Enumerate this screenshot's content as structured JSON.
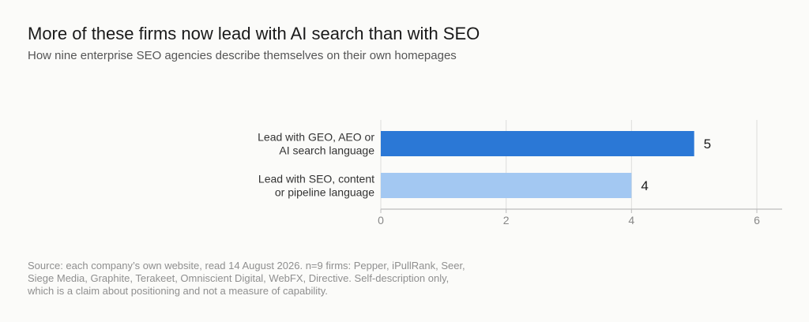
{
  "title": "More of these firms now lead with AI search than with SEO",
  "subtitle": "How nine enterprise SEO agencies describe themselves on their own homepages",
  "source": "Source: each company’s own website, read 14 August 2026. n=9 firms: Pepper, iPullRank, Seer,\nSiege Media, Graphite, Terakeet, Omniscient Digital, WebFX, Directive. Self-description only,\nwhich is a claim about positioning and not a measure of capability.",
  "colors": {
    "bar_primary": "#2b78d6",
    "bar_secondary": "#a3c8f2",
    "grid": "#dcdcdc",
    "axis": "#bdbdbd",
    "tick_text": "#888888",
    "label_text": "#333333",
    "value_text": "#1a1a1a"
  },
  "chart_data": {
    "type": "bar",
    "orientation": "horizontal",
    "categories": [
      [
        "Lead with GEO, AEO or",
        "AI search language"
      ],
      [
        "Lead with SEO, content",
        "or pipeline language"
      ]
    ],
    "values": [
      5,
      4
    ],
    "value_labels": [
      "5",
      "4"
    ],
    "xlim": [
      0,
      6
    ],
    "xticks": [
      0,
      2,
      4,
      6
    ],
    "xtick_labels": [
      "0",
      "2",
      "4",
      "6"
    ],
    "grid": true,
    "legend": "none"
  }
}
